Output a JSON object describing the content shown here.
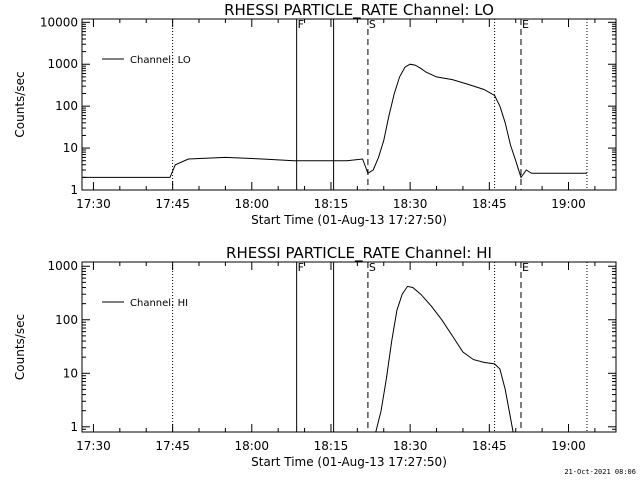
{
  "footer": {
    "timestamp": "21-Oct-2021 08:06"
  },
  "chart_data": [
    {
      "type": "line",
      "title": "RHESSI PARTICLE_RATE Channel: LO",
      "xlabel": "Start Time (01-Aug-13 17:27:50)",
      "ylabel": "Counts/sec",
      "xlim": [
        "17:27:50",
        "19:09:00"
      ],
      "ylim": [
        1,
        12000
      ],
      "yscale": "log",
      "x_tick_labels": [
        "17:30",
        "17:45",
        "18:00",
        "18:15",
        "18:30",
        "18:45",
        "19:00"
      ],
      "y_tick_labels": [
        "1",
        "10",
        "100",
        "1000",
        "10000"
      ],
      "legend": {
        "placement": "top-left",
        "entries": [
          "Channel: LO"
        ]
      },
      "markers": [
        {
          "label": "F",
          "time": "18:08:30",
          "style": "solid"
        },
        {
          "label": "",
          "time": "18:15:30",
          "style": "solid"
        },
        {
          "label": "S",
          "time": "18:22:00",
          "style": "dashed"
        },
        {
          "label": "E",
          "time": "18:51:00",
          "style": "dashed"
        }
      ],
      "dotted_lines": [
        "17:27:50",
        "17:45:00",
        "18:46:00",
        "19:03:30"
      ],
      "series": [
        {
          "name": "Channel: LO",
          "points": [
            [
              "17:28:00",
              2
            ],
            [
              "17:32:00",
              2
            ],
            [
              "17:36:00",
              2
            ],
            [
              "17:40:00",
              2
            ],
            [
              "17:44:30",
              2
            ],
            [
              "17:45:30",
              4
            ],
            [
              "17:48:00",
              5.5
            ],
            [
              "17:55:00",
              6
            ],
            [
              "18:02:00",
              5.5
            ],
            [
              "18:08:00",
              5
            ],
            [
              "18:14:00",
              5
            ],
            [
              "18:18:00",
              5
            ],
            [
              "18:21:00",
              5.5
            ],
            [
              "18:22:00",
              2.5
            ],
            [
              "18:23:00",
              3
            ],
            [
              "18:24:00",
              6
            ],
            [
              "18:25:00",
              15
            ],
            [
              "18:26:00",
              60
            ],
            [
              "18:27:00",
              200
            ],
            [
              "18:28:00",
              500
            ],
            [
              "18:29:00",
              850
            ],
            [
              "18:30:00",
              1000
            ],
            [
              "18:31:00",
              950
            ],
            [
              "18:32:00",
              800
            ],
            [
              "18:33:00",
              650
            ],
            [
              "18:35:00",
              500
            ],
            [
              "18:38:00",
              430
            ],
            [
              "18:41:00",
              330
            ],
            [
              "18:44:00",
              250
            ],
            [
              "18:46:00",
              180
            ],
            [
              "18:47:00",
              100
            ],
            [
              "18:48:00",
              40
            ],
            [
              "18:49:00",
              12
            ],
            [
              "18:50:00",
              5
            ],
            [
              "18:51:00",
              2
            ],
            [
              "18:52:00",
              3
            ],
            [
              "18:53:00",
              2.5
            ],
            [
              "18:56:00",
              2.5
            ],
            [
              "18:59:00",
              2.5
            ],
            [
              "19:03:30",
              2.5
            ]
          ]
        }
      ]
    },
    {
      "type": "line",
      "title": "RHESSI PARTICLE_RATE Channel: HI",
      "xlabel": "Start Time (01-Aug-13 17:27:50)",
      "ylabel": "Counts/sec",
      "xlim": [
        "17:27:50",
        "19:09:00"
      ],
      "ylim": [
        0.8,
        1200
      ],
      "yscale": "log",
      "x_tick_labels": [
        "17:30",
        "17:45",
        "18:00",
        "18:15",
        "18:30",
        "18:45",
        "19:00"
      ],
      "y_tick_labels": [
        "1",
        "10",
        "100",
        "1000"
      ],
      "legend": {
        "placement": "top-left",
        "entries": [
          "Channel: HI"
        ]
      },
      "markers": [
        {
          "label": "F",
          "time": "18:08:30",
          "style": "solid"
        },
        {
          "label": "",
          "time": "18:15:30",
          "style": "solid"
        },
        {
          "label": "S",
          "time": "18:22:00",
          "style": "dashed"
        },
        {
          "label": "E",
          "time": "18:51:00",
          "style": "dashed"
        }
      ],
      "dotted_lines": [
        "17:27:50",
        "17:45:00",
        "18:46:00",
        "19:03:30"
      ],
      "series": [
        {
          "name": "Channel: HI",
          "points": [
            [
              "18:23:30",
              0.8
            ],
            [
              "18:24:30",
              2
            ],
            [
              "18:25:30",
              8
            ],
            [
              "18:26:30",
              40
            ],
            [
              "18:27:30",
              150
            ],
            [
              "18:28:30",
              300
            ],
            [
              "18:29:30",
              420
            ],
            [
              "18:30:30",
              400
            ],
            [
              "18:32:00",
              300
            ],
            [
              "18:34:00",
              180
            ],
            [
              "18:36:00",
              100
            ],
            [
              "18:38:00",
              50
            ],
            [
              "18:40:00",
              25
            ],
            [
              "18:42:00",
              18
            ],
            [
              "18:44:00",
              16
            ],
            [
              "18:46:00",
              15
            ],
            [
              "18:47:00",
              12
            ],
            [
              "18:48:00",
              5
            ],
            [
              "18:49:00",
              1.5
            ],
            [
              "18:49:30",
              0.8
            ]
          ]
        }
      ]
    }
  ]
}
